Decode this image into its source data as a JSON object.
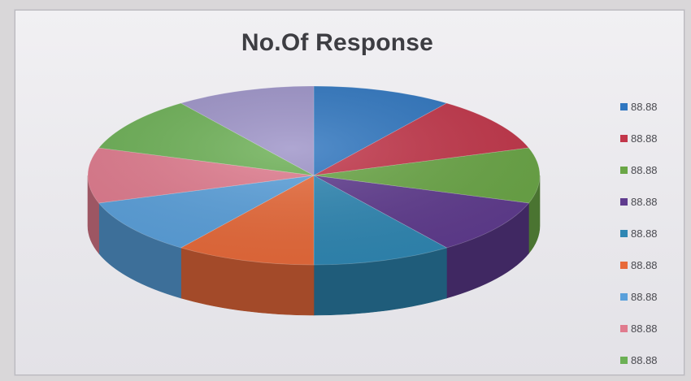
{
  "chart_data": {
    "type": "pie",
    "title": "No.Of Response",
    "legend_position": "right",
    "slices": [
      {
        "label": "88.88",
        "value": 88.88,
        "color": "#2f76c0",
        "side": "#1f4f85"
      },
      {
        "label": "88.88",
        "value": 88.88,
        "color": "#c2364a",
        "side": "#862634"
      },
      {
        "label": "88.88",
        "value": 88.88,
        "color": "#6aa646",
        "side": "#4a7431"
      },
      {
        "label": "88.88",
        "value": 88.88,
        "color": "#5f3b8e",
        "side": "#402862"
      },
      {
        "label": "88.88",
        "value": 88.88,
        "color": "#2f87b3",
        "side": "#1f5c7a"
      },
      {
        "label": "88.88",
        "value": 88.88,
        "color": "#e86a3a",
        "side": "#a34a29"
      },
      {
        "label": "88.88",
        "value": 88.88,
        "color": "#5aa0db",
        "side": "#3d6f99"
      },
      {
        "label": "88.88",
        "value": 88.88,
        "color": "#e07b8e",
        "side": "#9d5663"
      },
      {
        "label": "88.88",
        "value": 88.88,
        "color": "#6cb055",
        "side": "#4b7b3b"
      },
      {
        "label": "",
        "value": 88.88,
        "color": "#9d93c8",
        "side": "#6d678c"
      }
    ]
  }
}
